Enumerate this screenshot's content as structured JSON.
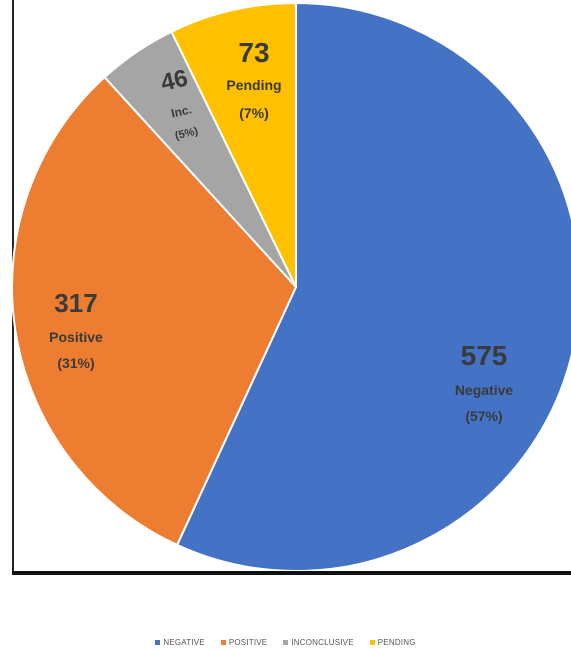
{
  "chart_data": {
    "type": "pie",
    "slices": [
      {
        "key": "negative",
        "label": "NEGATIVE",
        "count": "575",
        "name": "Negative",
        "pct": "(57%)",
        "value": 575,
        "color": "#4472C4",
        "text_color": "#3a3a3a"
      },
      {
        "key": "positive",
        "label": "POSITIVE",
        "count": "317",
        "name": "Positive",
        "pct": "(31%)",
        "value": 317,
        "color": "#ED7D31",
        "text_color": "#3a3a3a"
      },
      {
        "key": "inconclusive",
        "label": "INCONCLUSIVE",
        "count": "46",
        "name": "Inc.",
        "pct": "(5%)",
        "value": 46,
        "color": "#A5A5A5",
        "text_color": "#3a3a3a"
      },
      {
        "key": "pending",
        "label": "PENDING",
        "count": "73",
        "name": "Pending",
        "pct": "(7%)",
        "value": 73,
        "color": "#FFC000",
        "text_color": "#3a3a3a"
      }
    ],
    "start_angle": "12 o'clock",
    "direction": "clockwise",
    "legend_position": "bottom"
  }
}
